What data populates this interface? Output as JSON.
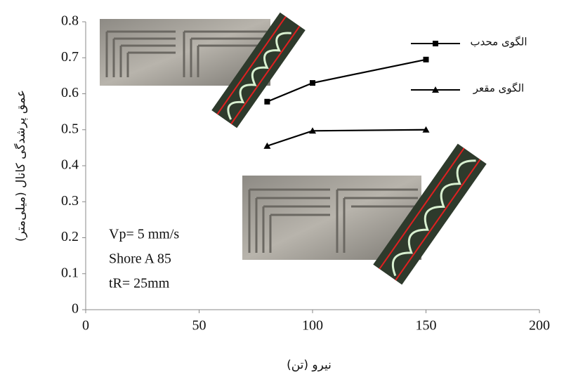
{
  "chart_data": {
    "type": "line",
    "x_label": "نیرو (تن)",
    "y_label": "عمق پرشدگی کانال (میلی‌متر)",
    "x": [
      80,
      100,
      150
    ],
    "series": [
      {
        "name": "الگوی محدب",
        "color": "#000000",
        "marker": "square",
        "values": [
          0.578,
          0.63,
          0.695
        ]
      },
      {
        "name": "الگوی مقعر",
        "color": "#000000",
        "marker": "triangle",
        "values": [
          0.455,
          0.497,
          0.5
        ]
      }
    ],
    "xlim": [
      0,
      200
    ],
    "xticks": [
      0,
      50,
      100,
      150,
      200
    ],
    "ylim": [
      0,
      0.8
    ],
    "yticks": [
      0,
      0.1,
      0.2,
      0.3,
      0.4,
      0.5,
      0.6,
      0.7,
      0.8
    ],
    "annotations": [
      "Vp= 5 mm/s",
      "Shore A 85",
      "tR= 25mm"
    ],
    "grid": false,
    "legend": "upper right"
  }
}
